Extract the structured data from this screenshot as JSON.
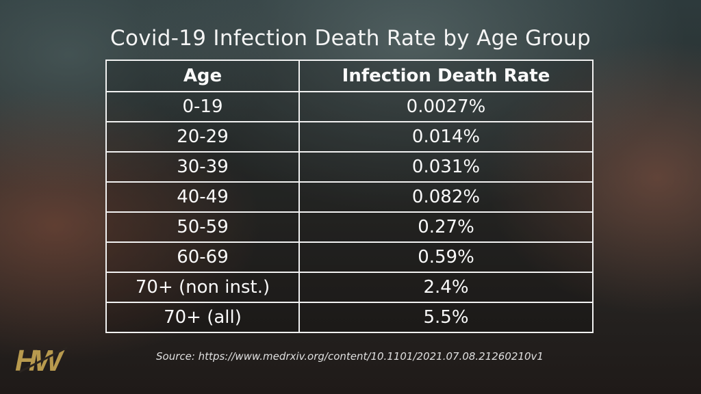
{
  "chart_data": {
    "type": "table",
    "title": "Covid-19 Infection Death Rate by Age Group",
    "columns": [
      "Age",
      "Infection Death Rate"
    ],
    "rows": [
      [
        "0-19",
        "0.0027%"
      ],
      [
        "20-29",
        "0.014%"
      ],
      [
        "30-39",
        "0.031%"
      ],
      [
        "40-49",
        "0.082%"
      ],
      [
        "50-59",
        "0.27%"
      ],
      [
        "60-69",
        "0.59%"
      ],
      [
        "70+ (non inst.)",
        "2.4%"
      ],
      [
        "70+ (all)",
        "5.5%"
      ]
    ]
  },
  "source": "Source: https://www.medrxiv.org/content/10.1101/2021.07.08.21260210v1",
  "logo": {
    "text": "HW",
    "color": "#b89a4e"
  }
}
